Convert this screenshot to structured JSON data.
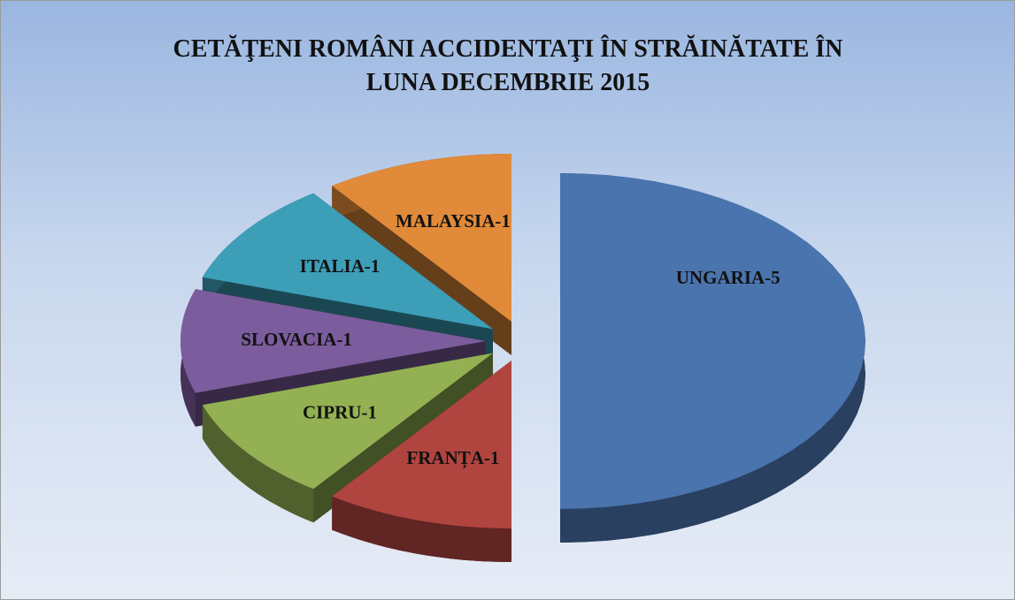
{
  "chart_data": {
    "type": "pie3d",
    "title": "CETĂŢENI ROMÂNI ACCIDENTAŢI ÎN STRĂINĂTATE ÎN LUNA DECEMBRIE 2015",
    "values": [
      5,
      1,
      1,
      1,
      1,
      1
    ],
    "value_labels": [
      "UNGARIA-5",
      "FRANȚA-1",
      "CIPRU-1",
      "SLOVACIA-1",
      "ITALIA-1",
      "MALAYSIA-1"
    ],
    "colors": [
      "#4a74ae",
      "#b0443f",
      "#93b153",
      "#7b5c9c",
      "#3d9eb8",
      "#e08a3a"
    ]
  }
}
